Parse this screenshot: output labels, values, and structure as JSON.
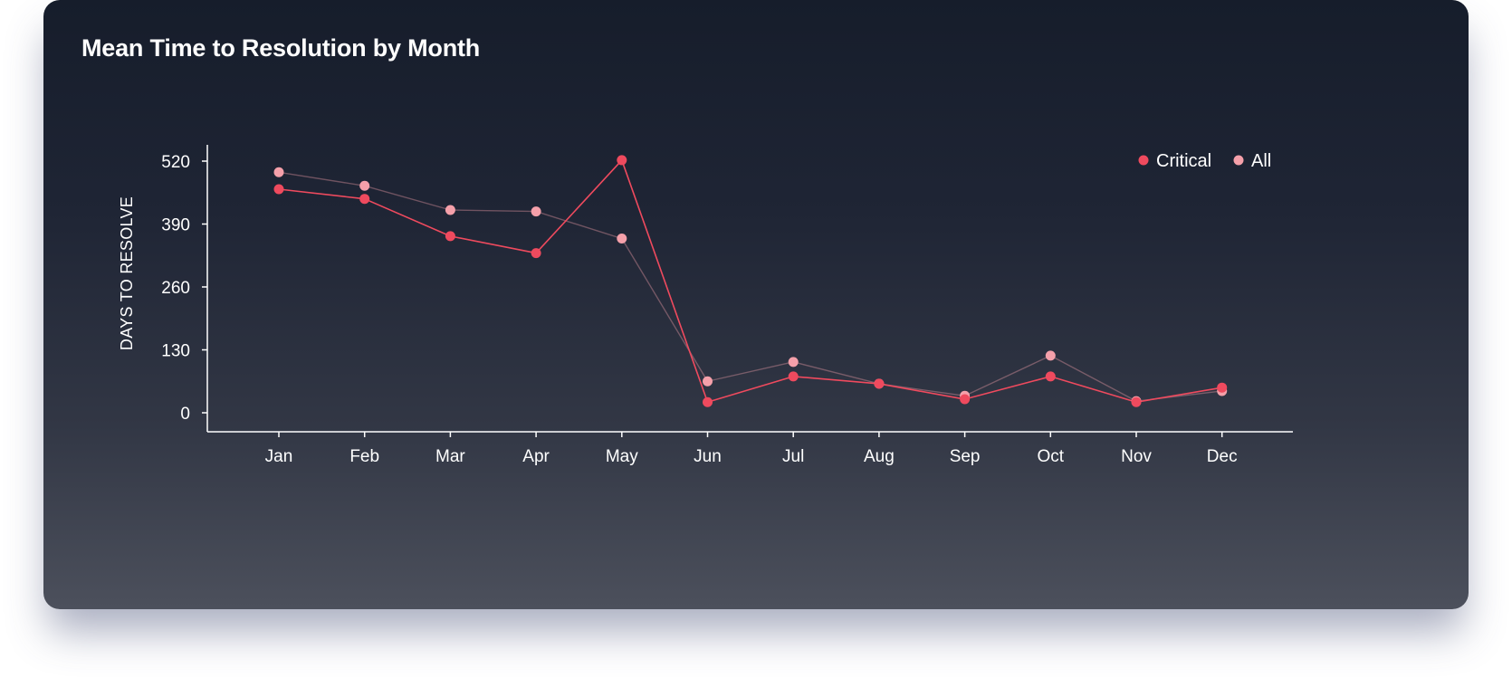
{
  "colors": {
    "critical": "#ef4a5e",
    "all": "#f5a0aa",
    "axis": "#ffffff"
  },
  "chart_data": {
    "type": "line",
    "title": "Mean Time to Resolution by Month",
    "xlabel": "",
    "ylabel": "DAYS TO RESOLVE",
    "categories": [
      "Jan",
      "Feb",
      "Mar",
      "Apr",
      "May",
      "Jun",
      "Jul",
      "Aug",
      "Sep",
      "Oct",
      "Nov",
      "Dec"
    ],
    "y_ticks": [
      "0",
      "130",
      "260",
      "390",
      "520"
    ],
    "ylim": [
      0,
      520
    ],
    "grid": false,
    "legend_position": "top-right",
    "series": [
      {
        "name": "Critical",
        "values": [
          462,
          442,
          365,
          330,
          522,
          22,
          75,
          60,
          28,
          75,
          22,
          52
        ]
      },
      {
        "name": "All",
        "values": [
          497,
          469,
          419,
          416,
          360,
          65,
          105,
          60,
          35,
          118,
          24,
          45
        ]
      }
    ]
  }
}
